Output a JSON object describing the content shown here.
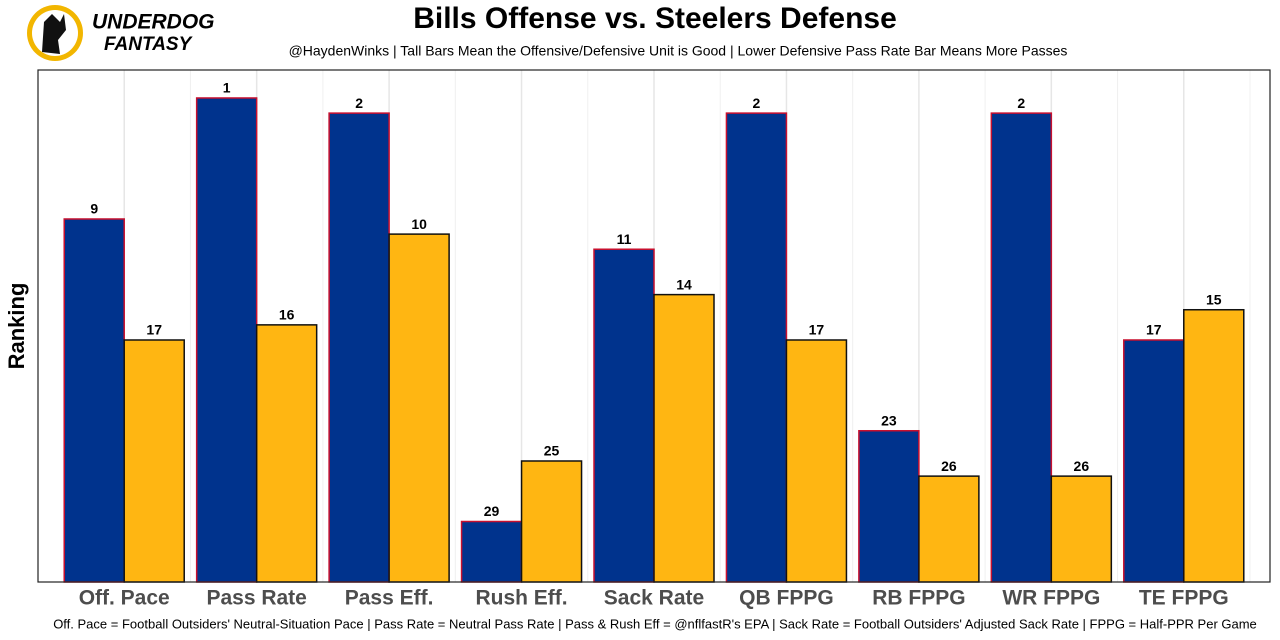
{
  "logo": {
    "line1": "UNDERDOG",
    "line2": "FANTASY"
  },
  "chart_data": {
    "type": "bar",
    "title": "Bills Offense vs. Steelers Defense",
    "subtitle": "@HaydenWinks | Tall Bars Mean the Offensive/Defensive Unit is Good | Lower Defensive Pass Rate Bar Means More Passes",
    "y_label": "Ranking",
    "caption": "Off. Pace = Football Outsiders' Neutral-Situation Pace | Pass Rate = Neutral Pass Rate | Pass & Rush Eff = @nflfastR's EPA | Sack Rate = Football Outsiders' Adjusted Sack Rate | FPPG = Half-PPR Per Game",
    "categories": [
      "Off. Pace",
      "Pass Rate",
      "Pass Eff.",
      "Rush Eff.",
      "Sack Rate",
      "QB FPPG",
      "RB FPPG",
      "WR FPPG",
      "TE FPPG"
    ],
    "series": [
      {
        "color": "#00338d",
        "values": [
          9,
          1,
          2,
          29,
          11,
          2,
          23,
          2,
          17
        ]
      },
      {
        "color": "#ffb612",
        "values": [
          17,
          16,
          10,
          25,
          14,
          17,
          26,
          26,
          15
        ]
      }
    ],
    "ylim": [
      33,
      -0.85
    ],
    "grid": true
  }
}
